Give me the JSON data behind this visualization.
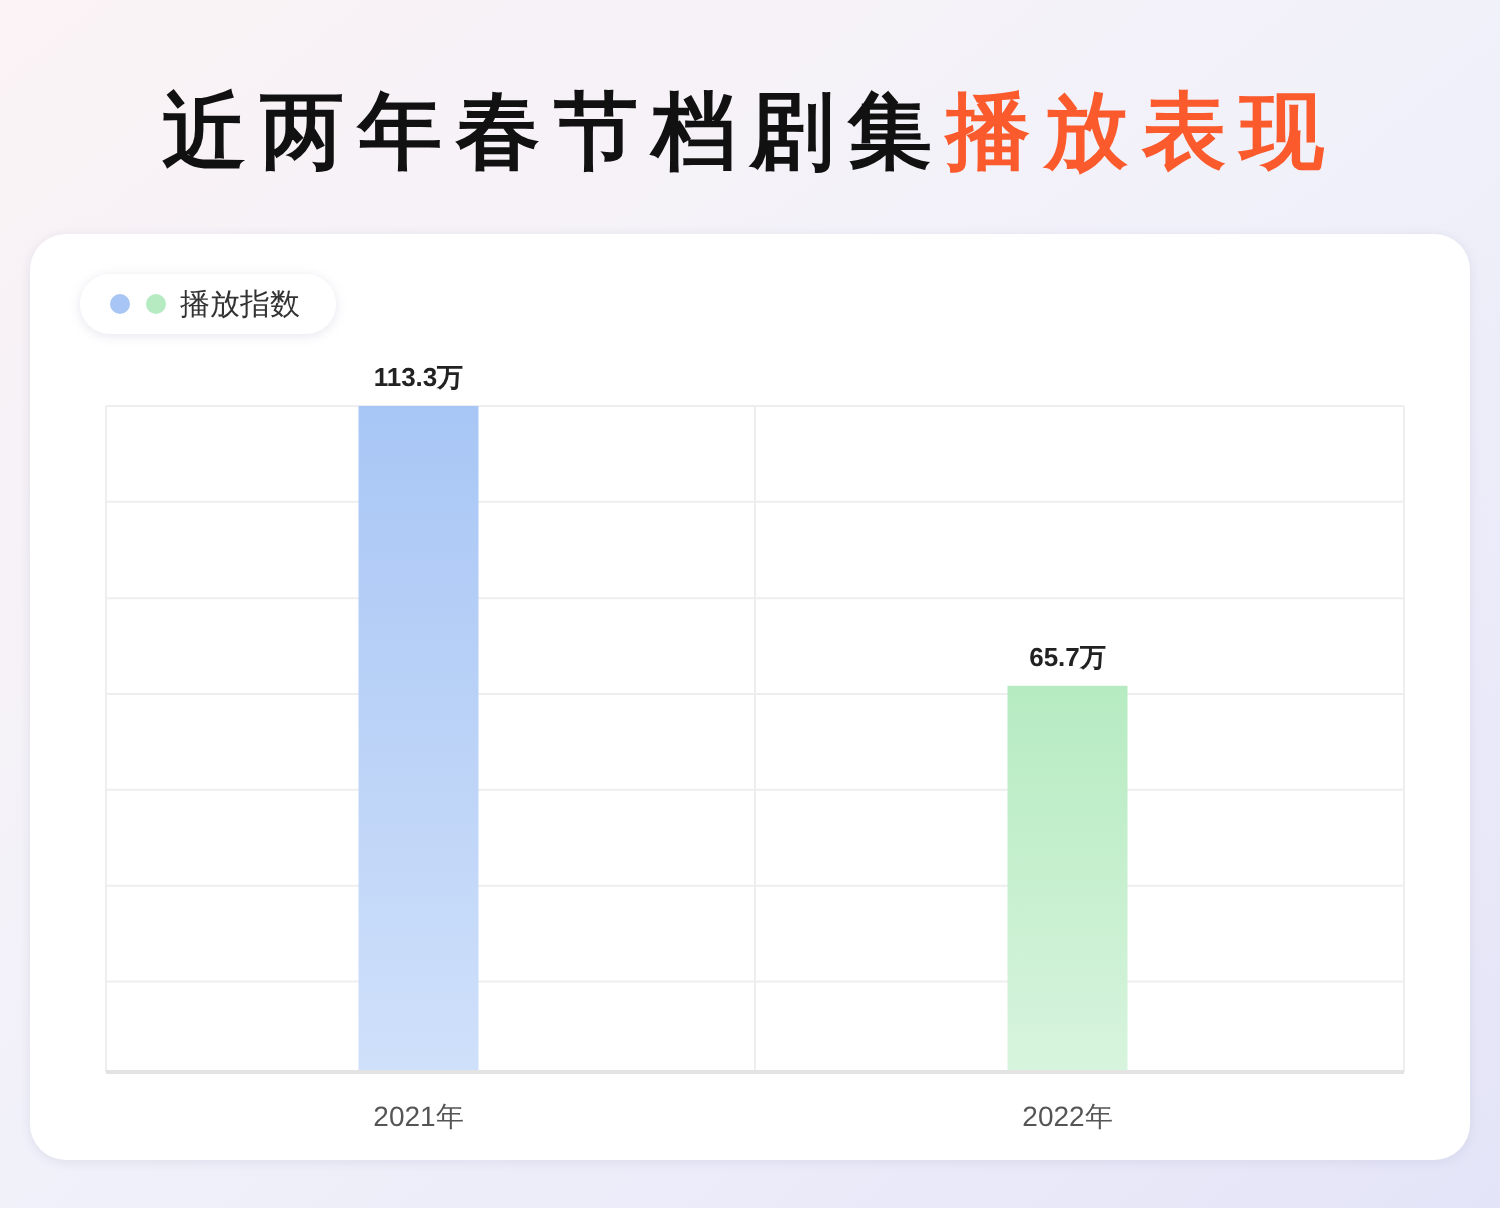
{
  "chart_data": {
    "type": "bar",
    "title": "近两年春节档剧集播放表现",
    "categories": [
      "2021年",
      "2022年"
    ],
    "series": [
      {
        "name": "播放指数",
        "colors": [
          "#a8c6f5",
          "#b6ebc1"
        ],
        "values": [
          113.3,
          65.7
        ],
        "value_labels": [
          "113.3万",
          "65.7万"
        ]
      }
    ],
    "ylim": [
      0,
      113.3
    ],
    "yticks": [
      {
        "value": 15.4,
        "label": null
      },
      {
        "value": 31.7,
        "label": null
      },
      {
        "value": 48,
        "label": null
      },
      {
        "value": 64.3,
        "label": null
      },
      {
        "value": 80.6,
        "label": null
      },
      {
        "value": 97,
        "label": null
      },
      {
        "value": 113.3,
        "label": null
      }
    ],
    "grid": true,
    "legend": "top left",
    "tick_labels": "x"
  }
}
